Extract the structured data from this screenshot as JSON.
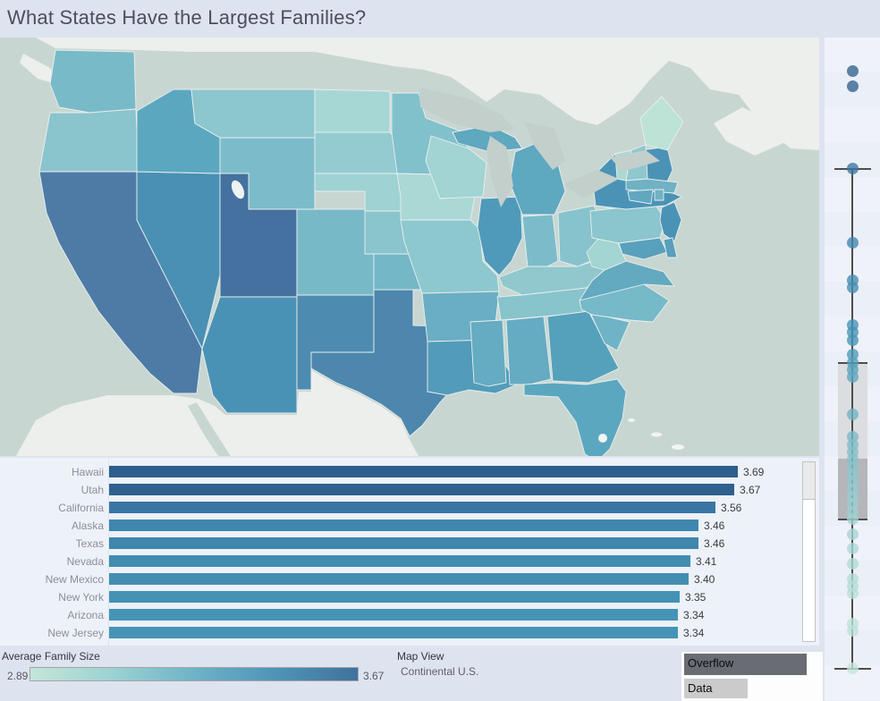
{
  "title": "What States Have the Largest Families?",
  "legend": {
    "title": "Average Family Size",
    "min_label": "2.89",
    "max_label": "3.67",
    "gradient": [
      "#c3e6d8",
      "#9cd2d2",
      "#6fb3c6",
      "#4e94b8",
      "#41719d"
    ]
  },
  "map_view": {
    "label": "Map View",
    "value": "Continental U.S."
  },
  "overflow_legend": {
    "items": [
      {
        "label": "Overflow",
        "color": "#696c73"
      },
      {
        "label": "Data",
        "color": "#cbcbcb"
      }
    ]
  },
  "chart_data": [
    {
      "type": "choropleth",
      "title": "Average family size by state, Continental U.S.",
      "region": "Continental U.S.",
      "color_scale": {
        "min": 2.89,
        "max": 3.67,
        "min_color": "#c3e6d8",
        "max_color": "#41719d"
      },
      "ocean_color": "#c8d6d1",
      "neighbor_color": "#edefec",
      "lake_color": "#c2cfcb",
      "states": {
        "WA": {
          "name": "Washington",
          "color": "#79bac9"
        },
        "OR": {
          "name": "Oregon",
          "color": "#8ac4cd"
        },
        "CA": {
          "name": "California",
          "color": "#4e7ba6",
          "value": 3.56
        },
        "ID": {
          "name": "Idaho",
          "color": "#5ca7c0"
        },
        "NV": {
          "name": "Nevada",
          "color": "#4a90b4",
          "value": 3.41
        },
        "UT": {
          "name": "Utah",
          "color": "#44719f",
          "value": 3.67
        },
        "AZ": {
          "name": "Arizona",
          "color": "#4a92b5",
          "value": 3.34
        },
        "MT": {
          "name": "Montana",
          "color": "#8cc6ce"
        },
        "WY": {
          "name": "Wyoming",
          "color": "#7cbcca"
        },
        "CO": {
          "name": "Colorado",
          "color": "#78b9c8"
        },
        "NM": {
          "name": "New Mexico",
          "color": "#4d8cb0",
          "value": 3.4
        },
        "ND": {
          "name": "North Dakota",
          "color": "#a7d7d4"
        },
        "SD": {
          "name": "South Dakota",
          "color": "#93cbd1"
        },
        "NE": {
          "name": "Nebraska",
          "color": "#9ed2d3"
        },
        "KS": {
          "name": "Kansas",
          "color": "#8ac4cd"
        },
        "OK": {
          "name": "Oklahoma",
          "color": "#74b7c7"
        },
        "TX": {
          "name": "Texas",
          "color": "#4d87ad",
          "value": 3.46
        },
        "MN": {
          "name": "Minnesota",
          "color": "#81c1cc"
        },
        "IA": {
          "name": "Iowa",
          "color": "#a9d8d5"
        },
        "MO": {
          "name": "Missouri",
          "color": "#8ec8cf"
        },
        "AR": {
          "name": "Arkansas",
          "color": "#6aaec3"
        },
        "LA": {
          "name": "Louisiana",
          "color": "#529bba"
        },
        "WI": {
          "name": "Wisconsin",
          "color": "#a1d4d3"
        },
        "IL": {
          "name": "Illinois",
          "color": "#4f9aba"
        },
        "MI": {
          "name": "Michigan",
          "color": "#5ea8c0"
        },
        "IN": {
          "name": "Indiana",
          "color": "#7cbcca"
        },
        "OH": {
          "name": "Ohio",
          "color": "#87c3cc"
        },
        "KY": {
          "name": "Kentucky",
          "color": "#90c8ce"
        },
        "TN": {
          "name": "Tennessee",
          "color": "#88c4cc"
        },
        "MS": {
          "name": "Mississippi",
          "color": "#65abc2"
        },
        "AL": {
          "name": "Alabama",
          "color": "#65abc2"
        },
        "GA": {
          "name": "Georgia",
          "color": "#55a1bc"
        },
        "FL": {
          "name": "Florida",
          "color": "#5ba7c0"
        },
        "SC": {
          "name": "South Carolina",
          "color": "#6fb4c6"
        },
        "NC": {
          "name": "North Carolina",
          "color": "#76b9c8"
        },
        "VA": {
          "name": "Virginia",
          "color": "#63a9c0"
        },
        "WV": {
          "name": "West Virginia",
          "color": "#a3d5d2"
        },
        "PA": {
          "name": "Pennsylvania",
          "color": "#8bc5cd"
        },
        "NY": {
          "name": "New York",
          "color": "#4a93b7",
          "value": 3.35
        },
        "NJ": {
          "name": "New Jersey",
          "color": "#4a93b7",
          "value": 3.34
        },
        "MD": {
          "name": "Maryland",
          "color": "#58a0bb"
        },
        "DE": {
          "name": "Delaware",
          "color": "#58a0bb"
        },
        "VT": {
          "name": "Vermont",
          "color": "#aad9d1"
        },
        "NH": {
          "name": "New Hampshire",
          "color": "#90c7ce"
        },
        "ME": {
          "name": "Maine",
          "color": "#bce3d5"
        },
        "MA": {
          "name": "Massachusetts",
          "color": "#70b1c4"
        },
        "CT": {
          "name": "Connecticut",
          "color": "#60a7bf"
        },
        "RI": {
          "name": "Rhode Island",
          "color": "#70b1c4"
        }
      }
    },
    {
      "type": "bar",
      "orientation": "horizontal",
      "categories": [
        "Hawaii",
        "Utah",
        "California",
        "Alaska",
        "Texas",
        "Nevada",
        "New Mexico",
        "New York",
        "Arizona",
        "New Jersey"
      ],
      "values": [
        3.69,
        3.67,
        3.56,
        3.46,
        3.46,
        3.41,
        3.4,
        3.35,
        3.34,
        3.34
      ],
      "labels": [
        "3.69",
        "3.67",
        "3.56",
        "3.46",
        "3.46",
        "3.41",
        "3.40",
        "3.35",
        "3.34",
        "3.34"
      ],
      "colors": [
        "#2d5f8e",
        "#2f618f",
        "#3a76a3",
        "#3f87ad",
        "#3f87ad",
        "#428cb0",
        "#438eb1",
        "#4493b5",
        "#4594b6",
        "#4594b6"
      ],
      "xlim": [
        0,
        3.69
      ],
      "ylabel": "",
      "xlabel": ""
    },
    {
      "type": "boxplot_strip",
      "box": {
        "whisker_high": 3.56,
        "q3": 3.3,
        "median": 3.17,
        "q1": 3.09,
        "whisker_low": 2.89,
        "outliers": [
          3.69,
          3.67
        ]
      },
      "box_colors": {
        "upper": "#dcdde0",
        "lower": "#b5b6ba",
        "line": "#4d4d4d"
      },
      "points": [
        {
          "value": 3.69,
          "color": "#2f618f"
        },
        {
          "value": 3.67,
          "color": "#30628f"
        },
        {
          "value": 3.56,
          "color": "#3a76a3"
        },
        {
          "value": 3.46,
          "color": "#3f87ad"
        },
        {
          "value": 3.41,
          "color": "#428cb0"
        },
        {
          "value": 3.4,
          "color": "#428db1"
        },
        {
          "value": 3.35,
          "color": "#4493b5"
        },
        {
          "value": 3.34,
          "color": "#4493b5"
        },
        {
          "value": 3.33,
          "color": "#4594b6"
        },
        {
          "value": 3.31,
          "color": "#4b98b8"
        },
        {
          "value": 3.3,
          "color": "#539fbb"
        },
        {
          "value": 3.29,
          "color": "#58a3bd"
        },
        {
          "value": 3.28,
          "color": "#5ea7bf"
        },
        {
          "value": 3.23,
          "color": "#6fb2c5"
        },
        {
          "value": 3.2,
          "color": "#78b8c8"
        },
        {
          "value": 3.19,
          "color": "#7dbcca"
        },
        {
          "value": 3.18,
          "color": "#82bfcb"
        },
        {
          "value": 3.17,
          "color": "#86c2cb"
        },
        {
          "value": 3.16,
          "color": "#89c4cc"
        },
        {
          "value": 3.15,
          "color": "#8ec6ce"
        },
        {
          "value": 3.14,
          "color": "#91c8cf"
        },
        {
          "value": 3.13,
          "color": "#95cad0"
        },
        {
          "value": 3.12,
          "color": "#98ccd1"
        },
        {
          "value": 3.11,
          "color": "#9bced2"
        },
        {
          "value": 3.1,
          "color": "#9ed0d2"
        },
        {
          "value": 3.09,
          "color": "#a1d2d3"
        },
        {
          "value": 3.07,
          "color": "#a6d5d4"
        },
        {
          "value": 3.05,
          "color": "#abd8d5"
        },
        {
          "value": 3.03,
          "color": "#afdad6"
        },
        {
          "value": 3.01,
          "color": "#b3dcd7"
        },
        {
          "value": 3.0,
          "color": "#b5ddd7"
        },
        {
          "value": 2.99,
          "color": "#b7ded7"
        },
        {
          "value": 2.95,
          "color": "#bce1d8"
        },
        {
          "value": 2.94,
          "color": "#bee2d9"
        },
        {
          "value": 2.89,
          "color": "#c4e5da"
        }
      ]
    }
  ]
}
